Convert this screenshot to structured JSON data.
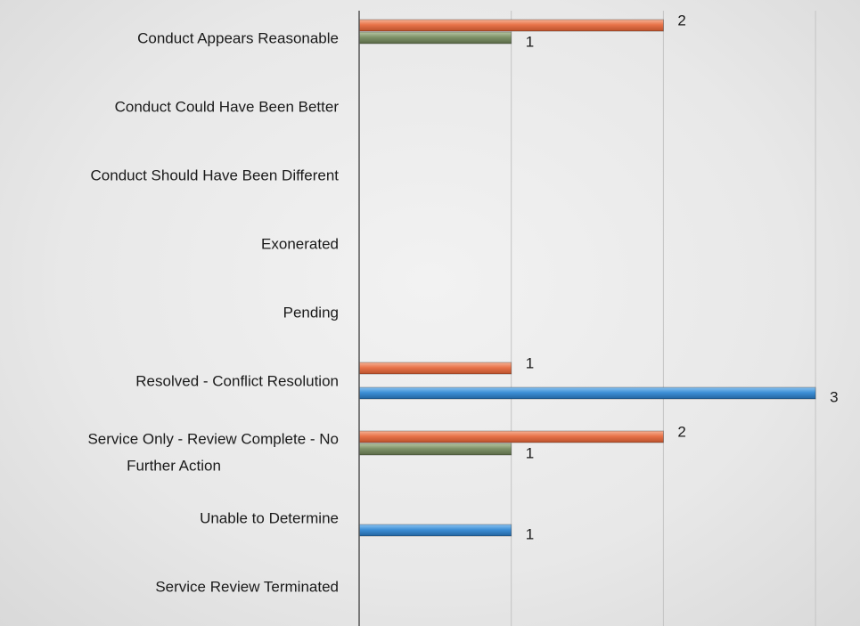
{
  "chart_data": {
    "type": "bar",
    "orientation": "horizontal",
    "categories": [
      [
        "Conduct Appears Reasonable"
      ],
      [
        "Conduct Could Have Been Better"
      ],
      [
        "Conduct Should Have Been Different"
      ],
      [
        "Exonerated"
      ],
      [
        "Pending"
      ],
      [
        "Resolved - Conflict Resolution"
      ],
      [
        "Service Only - Review Complete - No",
        "Further Action"
      ],
      [
        "Unable to Determine"
      ],
      [
        "Service Review Terminated"
      ]
    ],
    "series": [
      {
        "color": "#e8734a",
        "values": [
          2,
          0,
          0,
          0,
          0,
          1,
          2,
          0,
          0
        ]
      },
      {
        "color": "#7f9269",
        "values": [
          1,
          0,
          0,
          0,
          0,
          0,
          1,
          0,
          0
        ]
      },
      {
        "color": "#3d8fd6",
        "values": [
          0,
          0,
          0,
          0,
          0,
          3,
          0,
          1,
          0
        ]
      }
    ],
    "xlim": [
      0,
      3
    ],
    "grid": true,
    "legend": "none",
    "data_labels": true,
    "title": "",
    "xlabel": "",
    "ylabel": ""
  }
}
